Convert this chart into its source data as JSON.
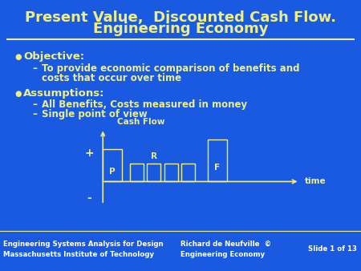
{
  "bg_color": "#1a5ae0",
  "title_line1": "Present Value,  Discounted Cash Flow.",
  "title_line2": "Engineering Economy",
  "title_color": "#eeee88",
  "title_fontsize": 13,
  "separator_color": "#eeee88",
  "bullet_color": "#eeee88",
  "text_color": "#eeee88",
  "bullet1_header": "Objective:",
  "bullet1_sub1": "To provide economic comparison of benefits and",
  "bullet1_sub2": "costs that occur over time",
  "bullet2_header": "Assumptions:",
  "bullet2_sub1": "All Benefits, Costs measured in money",
  "bullet2_sub2": "Single point of view",
  "footer_left1": "Engineering Systems Analysis for Design",
  "footer_left2": "Massachusetts Institute of Technology",
  "footer_mid1": "Richard de Neufville  ©",
  "footer_mid2": "Engineering Economy",
  "footer_right": "Slide 1 of 13",
  "footer_color": "#ffffff",
  "footer_fontsize": 6.2,
  "diagram_label_cashflow": "Cash Flow",
  "diagram_label_time": "time",
  "diagram_label_plus": "+",
  "diagram_label_minus": "-",
  "diagram_label_P": "P",
  "diagram_label_R": "R",
  "diagram_label_F": "F",
  "bar_color": "#eeee88"
}
